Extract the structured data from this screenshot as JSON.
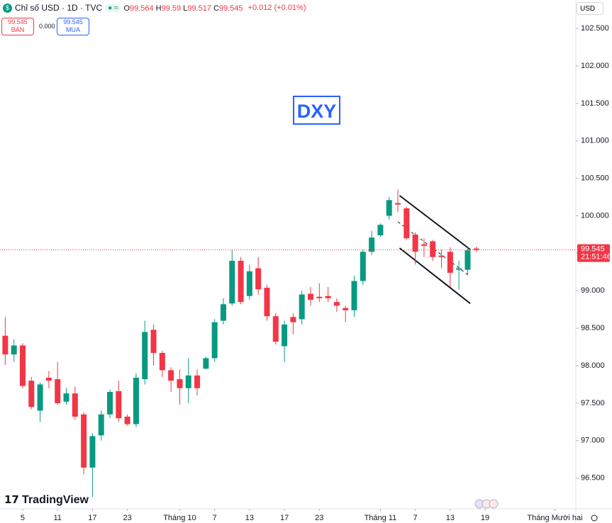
{
  "header": {
    "symbol": "Chỉ số USD · 1D · TVC",
    "ohlc": [
      {
        "label": "O",
        "value": 99.564
      },
      {
        "label": "H",
        "value": 99.59
      },
      {
        "label": "L",
        "value": 99.517
      },
      {
        "label": "C",
        "value": 99.545
      }
    ],
    "change": "+0.012 (+0.01%)",
    "sell": {
      "price": "99.545",
      "label": "BÁN"
    },
    "spread": "0.000",
    "buy": {
      "price": "99.545",
      "label": "MUA"
    },
    "currency": "USD",
    "brand": "TradingView"
  },
  "chart_data": {
    "type": "candlestick",
    "annotation": "DXY",
    "open": [
      98.4,
      98.15,
      98.27,
      97.8,
      97.4,
      97.84,
      97.82,
      97.52,
      97.63,
      97.35,
      96.64,
      97.07,
      97.35,
      97.66,
      97.32,
      97.22,
      97.82,
      98.48,
      98.17,
      97.94,
      97.82,
      97.7,
      97.87,
      97.96,
      98.1,
      98.6,
      98.83,
      99.4,
      98.93,
      99.3,
      99.04,
      98.66,
      98.26,
      98.65,
      98.62,
      98.96,
      98.92,
      98.93,
      98.85,
      98.77,
      98.74,
      99.13,
      99.52,
      99.74,
      100.0,
      100.17,
      100.1,
      99.75,
      99.62,
      99.66,
      99.47,
      99.52,
      99.28,
      99.28,
      99.564
    ],
    "high": [
      98.65,
      98.35,
      98.3,
      97.85,
      97.78,
      97.93,
      98.05,
      97.7,
      97.72,
      97.38,
      97.1,
      97.4,
      97.68,
      97.8,
      97.35,
      97.9,
      98.6,
      98.55,
      98.2,
      97.98,
      97.95,
      98.1,
      97.95,
      98.12,
      98.62,
      98.9,
      99.55,
      99.45,
      99.35,
      99.45,
      99.08,
      98.7,
      98.6,
      98.7,
      99.0,
      99.05,
      99.1,
      99.05,
      98.9,
      98.8,
      99.2,
      99.55,
      99.8,
      99.9,
      100.25,
      100.35,
      100.12,
      99.78,
      99.7,
      99.68,
      99.55,
      99.58,
      99.4,
      99.58,
      99.59
    ],
    "low": [
      98.01,
      98.05,
      97.7,
      97.42,
      97.25,
      97.7,
      97.48,
      97.48,
      97.28,
      96.55,
      96.25,
      97.0,
      97.3,
      97.25,
      97.2,
      97.18,
      97.75,
      98.0,
      97.85,
      97.65,
      97.48,
      97.5,
      97.6,
      97.95,
      98.05,
      98.55,
      98.8,
      98.82,
      98.88,
      98.95,
      98.6,
      98.28,
      98.05,
      98.42,
      98.55,
      98.8,
      98.85,
      98.85,
      98.72,
      98.58,
      98.65,
      99.08,
      99.48,
      99.72,
      99.95,
      100.05,
      99.68,
      99.35,
      99.45,
      99.4,
      99.3,
      99.05,
      99.02,
      99.22,
      99.517
    ],
    "close": [
      98.15,
      98.27,
      97.73,
      97.45,
      97.75,
      97.8,
      97.5,
      97.63,
      97.32,
      96.64,
      97.06,
      97.35,
      97.65,
      97.3,
      97.22,
      97.84,
      98.45,
      98.17,
      97.94,
      97.8,
      97.7,
      97.87,
      97.7,
      98.1,
      98.58,
      98.82,
      99.4,
      98.85,
      99.26,
      99.02,
      98.66,
      98.32,
      98.55,
      98.58,
      98.95,
      98.88,
      98.9,
      98.9,
      98.8,
      98.74,
      99.13,
      99.52,
      99.71,
      99.88,
      100.21,
      100.15,
      99.7,
      99.52,
      99.6,
      99.45,
      99.45,
      99.24,
      99.3,
      99.54,
      99.545
    ],
    "up_color": "#089981",
    "down_color": "#f23645",
    "xlim": [
      -0.6,
      65.4
    ],
    "xticks": [
      {
        "value": 2,
        "label": "5"
      },
      {
        "value": 6,
        "label": "11"
      },
      {
        "value": 10,
        "label": "17"
      },
      {
        "value": 14,
        "label": "23"
      },
      {
        "value": 20,
        "label": "Tháng 10"
      },
      {
        "value": 24,
        "label": "7"
      },
      {
        "value": 28,
        "label": "13"
      },
      {
        "value": 32,
        "label": "17"
      },
      {
        "value": 36,
        "label": "23"
      },
      {
        "value": 43,
        "label": "Tháng 11"
      },
      {
        "value": 47,
        "label": "7"
      },
      {
        "value": 51,
        "label": "13"
      },
      {
        "value": 55,
        "label": "19"
      },
      {
        "value": 63,
        "label": "Tháng Mười hai"
      }
    ],
    "ylim": [
      96.09,
      102.88
    ],
    "yticks": [
      {
        "value": 96.5,
        "label": "96.500"
      },
      {
        "value": 97,
        "label": "97.000"
      },
      {
        "value": 97.5,
        "label": "97.500"
      },
      {
        "value": 98,
        "label": "98.000"
      },
      {
        "value": 98.5,
        "label": "98.500"
      },
      {
        "value": 99,
        "label": "99.000"
      },
      {
        "value": 99.5,
        "label": "99.500"
      },
      {
        "value": 100,
        "label": "100.000"
      },
      {
        "value": 100.5,
        "label": "100.500"
      },
      {
        "value": 101,
        "label": "101.000"
      },
      {
        "value": 101.5,
        "label": "101.500"
      },
      {
        "value": 102,
        "label": "102.000"
      },
      {
        "value": 102.5,
        "label": "102.500"
      }
    ],
    "last_price": {
      "value": 99.545,
      "time": "21:51:46"
    },
    "channel": [
      {
        "x": [
          45.2,
          53.3
        ],
        "y": [
          100.27,
          99.55
        ],
        "style": "solid"
      },
      {
        "x": [
          45.2,
          53.3
        ],
        "y": [
          99.57,
          98.83
        ],
        "style": "solid"
      },
      {
        "x": [
          45.0,
          53.3
        ],
        "y": [
          99.92,
          99.19
        ],
        "style": "dashed"
      }
    ]
  }
}
